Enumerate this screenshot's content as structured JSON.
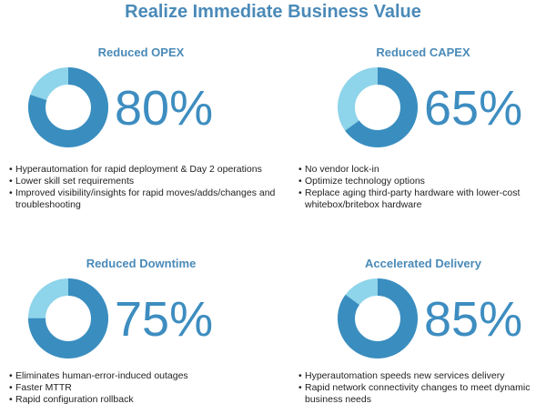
{
  "title": "Realize Immediate Business Value",
  "panels": [
    {
      "heading": "Reduced OPEX",
      "value": 80,
      "value_label": "80%",
      "bullets": [
        "Hyperautomation for rapid deployment & Day 2 operations",
        "Lower skill set requirements",
        "Improved visibility/insights for rapid moves/adds/changes and troubleshooting"
      ]
    },
    {
      "heading": "Reduced CAPEX",
      "value": 65,
      "value_label": "65%",
      "bullets": [
        "No vendor lock-in",
        "Optimize technology options",
        "Replace aging third-party hardware with lower-cost whitebox/britebox hardware"
      ]
    },
    {
      "heading": "Reduced Downtime",
      "value": 75,
      "value_label": "75%",
      "bullets": [
        "Eliminates human-error-induced outages",
        "Faster MTTR",
        "Rapid configuration rollback"
      ]
    },
    {
      "heading": "Accelerated Delivery",
      "value": 85,
      "value_label": "85%",
      "bullets": [
        "Hyperautomation speeds new services delivery",
        "Rapid network connectivity changes  to meet dynamic business needs"
      ]
    }
  ]
}
